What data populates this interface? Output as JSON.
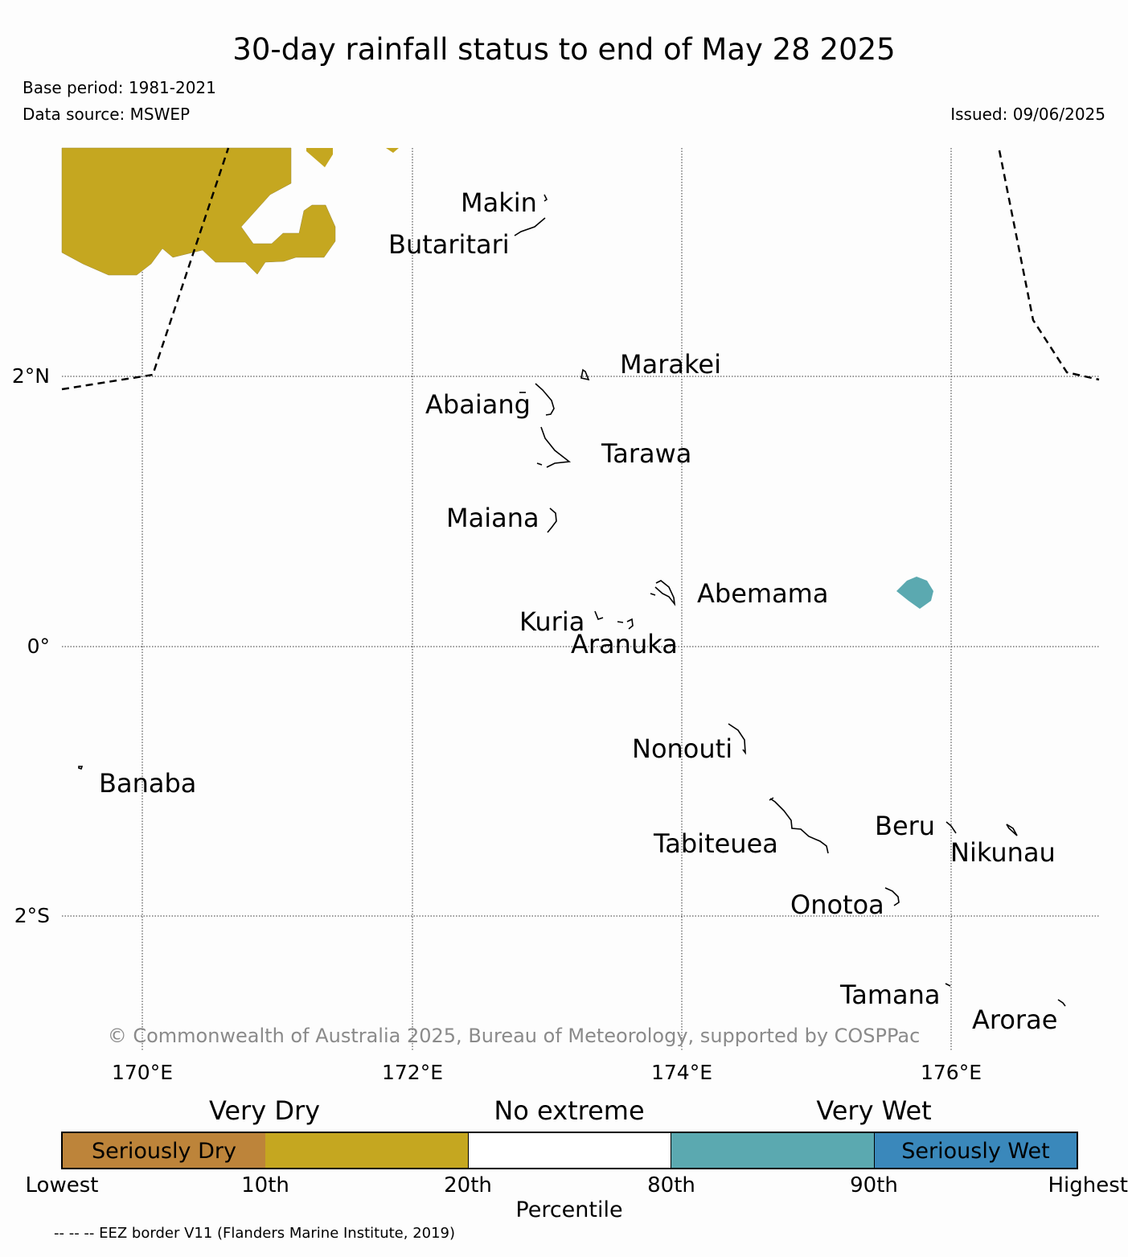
{
  "header": {
    "title": "30-day rainfall status to end of May 28 2025",
    "base_period": "Base period: 1981-2021",
    "data_source": "Data source: MSWEP",
    "issued": "Issued: 09/06/2025"
  },
  "map": {
    "lat_labels": [
      "2°N",
      "0°",
      "2°S"
    ],
    "lon_labels": [
      "170°E",
      "172°E",
      "174°E",
      "176°E"
    ],
    "places": [
      "Makin",
      "Butaritari",
      "Marakei",
      "Abaiang",
      "Tarawa",
      "Maiana",
      "Abemama",
      "Kuria",
      "Aranuka",
      "Nonouti",
      "Banaba",
      "Beru",
      "Tabiteuea",
      "Nikunau",
      "Onotoa",
      "Tamana",
      "Arorae"
    ],
    "copyright": "© Commonwealth of Australia 2025, Bureau of Meteorology, supported by COSPPac",
    "shading": [
      {
        "category": "Very Dry",
        "region": "north-west corner",
        "color": "#c5a720"
      },
      {
        "category": "Very Wet",
        "region": "east of Abemama",
        "color": "#5ba9b0"
      }
    ],
    "eez_border": "dashed black"
  },
  "legend": {
    "headings": [
      "Very Dry",
      "No extreme",
      "Very Wet"
    ],
    "boxes": [
      {
        "label": "Seriously Dry",
        "color": "#bd843a"
      },
      {
        "label": "",
        "color": "#c5a720"
      },
      {
        "label": "",
        "color": "#ffffff"
      },
      {
        "label": "",
        "color": "#5ba9b0"
      },
      {
        "label": "Seriously Wet",
        "color": "#3a88bb"
      }
    ],
    "ticks": [
      "Lowest",
      "10th",
      "20th",
      "80th",
      "90th",
      "Highest"
    ],
    "axis_label": "Percentile"
  },
  "footnote": "-- -- -- EEZ border V11 (Flanders Marine Institute, 2019)"
}
